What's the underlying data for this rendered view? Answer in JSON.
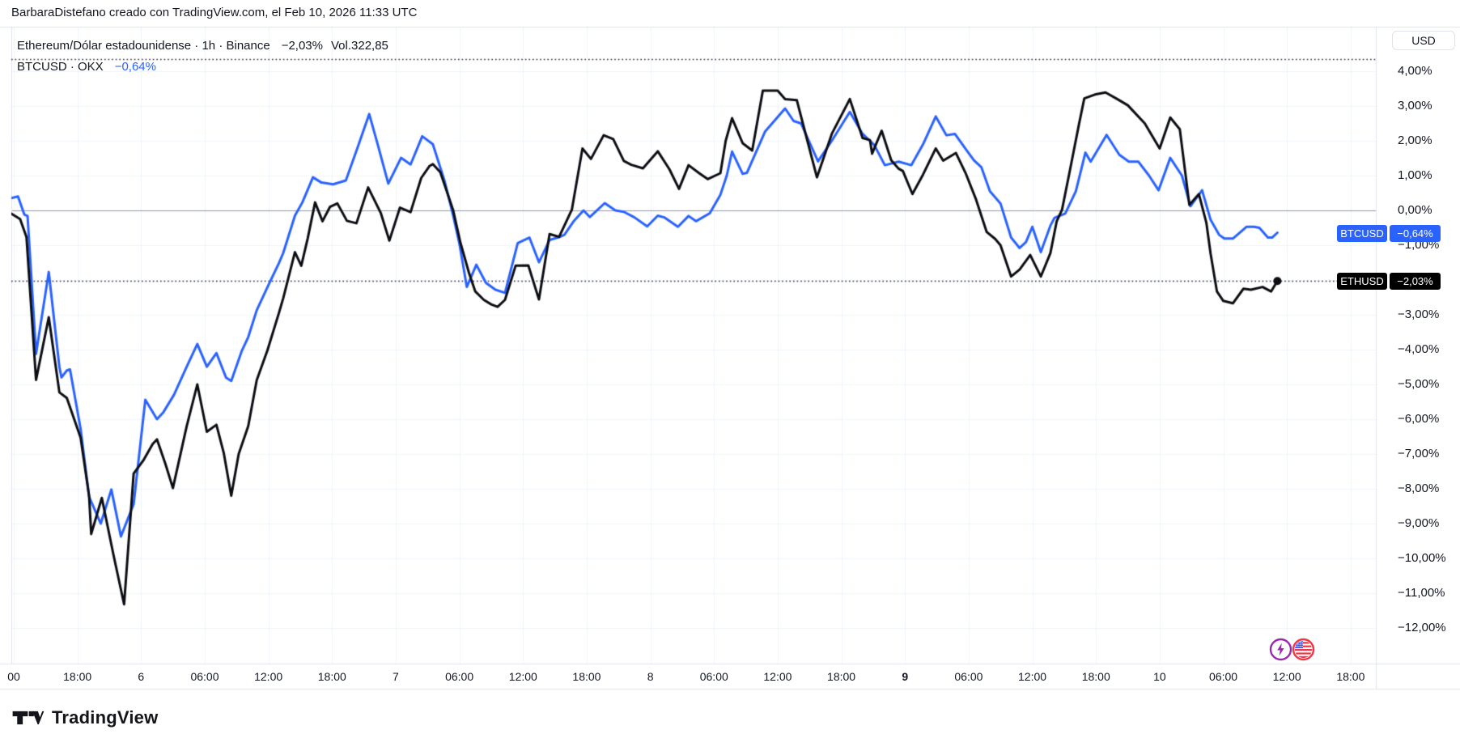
{
  "attribution": "BarbaraDistefano creado con TradingView.com, el Feb 10, 2026 11:33 UTC",
  "legend": {
    "row1_left": "Ethereum/Dólar estadounidense · 1h · Binance",
    "row1_change": "−2,03%",
    "row1_volume": "Vol.322,85",
    "row2_left": "BTCUSD · OKX",
    "row2_change": "−0,64%"
  },
  "price_axis": {
    "currency": "USD",
    "ticks": [
      {
        "v": 4,
        "label": "4,00%"
      },
      {
        "v": 3,
        "label": "3,00%"
      },
      {
        "v": 2,
        "label": "2,00%"
      },
      {
        "v": 1,
        "label": "1,00%"
      },
      {
        "v": 0,
        "label": "0,00%"
      },
      {
        "v": -1,
        "label": "−1,00%"
      },
      {
        "v": -2,
        "label": "−2,00%"
      },
      {
        "v": -3,
        "label": "−3,00%"
      },
      {
        "v": -4,
        "label": "−4,00%"
      },
      {
        "v": -5,
        "label": "−5,00%"
      },
      {
        "v": -6,
        "label": "−6,00%"
      },
      {
        "v": -7,
        "label": "−7,00%"
      },
      {
        "v": -8,
        "label": "−8,00%"
      },
      {
        "v": -9,
        "label": "−9,00%"
      },
      {
        "v": -10,
        "label": "−10,00%"
      },
      {
        "v": -11,
        "label": "−11,00%"
      },
      {
        "v": -12,
        "label": "−12,00%"
      }
    ]
  },
  "badges": [
    {
      "symbol": "BTCUSD",
      "value": "−0,64%",
      "pct": -0.64,
      "bg": "#2962FF"
    },
    {
      "symbol": "ETHUSD",
      "value": "−2,03%",
      "pct": -2.03,
      "bg": "#000000"
    }
  ],
  "time_axis": [
    {
      "label": "00",
      "slot": 0
    },
    {
      "label": "18:00",
      "slot": 1
    },
    {
      "label": "6",
      "slot": 2,
      "day": true
    },
    {
      "label": "06:00",
      "slot": 3
    },
    {
      "label": "12:00",
      "slot": 4
    },
    {
      "label": "18:00",
      "slot": 5
    },
    {
      "label": "7",
      "slot": 6,
      "day": true
    },
    {
      "label": "06:00",
      "slot": 7
    },
    {
      "label": "12:00",
      "slot": 8
    },
    {
      "label": "18:00",
      "slot": 9
    },
    {
      "label": "8",
      "slot": 10,
      "day": true
    },
    {
      "label": "06:00",
      "slot": 11
    },
    {
      "label": "12:00",
      "slot": 12
    },
    {
      "label": "18:00",
      "slot": 13
    },
    {
      "label": "9",
      "slot": 14,
      "day": true,
      "bold": true
    },
    {
      "label": "06:00",
      "slot": 15
    },
    {
      "label": "12:00",
      "slot": 16
    },
    {
      "label": "18:00",
      "slot": 17
    },
    {
      "label": "10",
      "slot": 18,
      "day": true
    },
    {
      "label": "06:00",
      "slot": 19
    },
    {
      "label": "12:00",
      "slot": 20
    },
    {
      "label": "18:00",
      "slot": 21
    }
  ],
  "logo_text": "TradingView",
  "chart_data": {
    "type": "line",
    "title": "Ethereum/Dólar estadounidense · 1h · Binance vs BTCUSD · OKX (cambio porcentual)",
    "ylabel": "%",
    "ylim": [
      -12.6,
      4.8
    ],
    "grid": true,
    "zero_line": 0,
    "x_unit": "hours since 2026-02-05 11:00 UTC (1h bars, ticks every 6h)",
    "dotted_levels": [
      {
        "pct": 4.35
      },
      {
        "pct": -2.03,
        "dot_end": true
      }
    ],
    "series": [
      {
        "name": "BTCUSD",
        "color": "#2962FF",
        "last_label": "−0,64%",
        "points": [
          [
            0,
            0.3
          ],
          [
            1.4,
            0.4
          ],
          [
            2,
            -0.12
          ],
          [
            2.3,
            -0.16
          ],
          [
            3.1,
            -4.12
          ],
          [
            4.3,
            -1.77
          ],
          [
            5.3,
            -4.5
          ],
          [
            5.5,
            -4.8
          ],
          [
            6,
            -4.6
          ],
          [
            6.3,
            -4.57
          ],
          [
            7.3,
            -6.28
          ],
          [
            8.1,
            -8.23
          ],
          [
            9.2,
            -9
          ],
          [
            10.2,
            -8.02
          ],
          [
            11.1,
            -9.37
          ],
          [
            12.3,
            -8.44
          ],
          [
            13.4,
            -5.44
          ],
          [
            14.5,
            -6
          ],
          [
            15.1,
            -5.8
          ],
          [
            16.1,
            -5.3
          ],
          [
            17.3,
            -4.49
          ],
          [
            18.3,
            -3.84
          ],
          [
            19.2,
            -4.49
          ],
          [
            20.1,
            -4.1
          ],
          [
            21,
            -4.8
          ],
          [
            21.5,
            -4.9
          ],
          [
            22.5,
            -4.03
          ],
          [
            23.1,
            -3.64
          ],
          [
            23.9,
            -2.87
          ],
          [
            24.9,
            -2.21
          ],
          [
            26,
            -1.51
          ],
          [
            26.4,
            -1.22
          ],
          [
            27.5,
            -0.15
          ],
          [
            28.2,
            0.23
          ],
          [
            29.2,
            0.95
          ],
          [
            30,
            0.8
          ],
          [
            31.1,
            0.75
          ],
          [
            32.3,
            0.86
          ],
          [
            33.4,
            1.8
          ],
          [
            34.5,
            2.77
          ],
          [
            35.3,
            1.9
          ],
          [
            36.3,
            0.77
          ],
          [
            37.5,
            1.51
          ],
          [
            38.4,
            1.32
          ],
          [
            39.5,
            2.13
          ],
          [
            40.5,
            1.9
          ],
          [
            41.6,
            0.85
          ],
          [
            42.4,
            -0.13
          ],
          [
            43,
            -0.95
          ],
          [
            43.7,
            -2.2
          ],
          [
            44.6,
            -1.56
          ],
          [
            45.5,
            -2.08
          ],
          [
            46.4,
            -2.28
          ],
          [
            47.3,
            -2.37
          ],
          [
            48.5,
            -0.94
          ],
          [
            49.6,
            -0.78
          ],
          [
            50.5,
            -1.49
          ],
          [
            51.5,
            -0.85
          ],
          [
            52.4,
            -0.77
          ],
          [
            52.9,
            -0.7
          ],
          [
            53.8,
            -0.3
          ],
          [
            54.7,
            0
          ],
          [
            55.3,
            -0.19
          ],
          [
            56.7,
            0.21
          ],
          [
            57.7,
            0
          ],
          [
            58.5,
            -0.04
          ],
          [
            59.5,
            -0.2
          ],
          [
            60.7,
            -0.46
          ],
          [
            61.7,
            -0.15
          ],
          [
            62.3,
            -0.2
          ],
          [
            63.6,
            -0.47
          ],
          [
            64.6,
            -0.16
          ],
          [
            65.3,
            -0.31
          ],
          [
            66.6,
            -0.08
          ],
          [
            67.6,
            0.45
          ],
          [
            68.2,
            1
          ],
          [
            68.7,
            1.69
          ],
          [
            69.7,
            1.05
          ],
          [
            70.1,
            1.08
          ],
          [
            71.8,
            2.26
          ],
          [
            73.7,
            2.93
          ],
          [
            74.5,
            2.57
          ],
          [
            75.2,
            2.5
          ],
          [
            76.8,
            1.41
          ],
          [
            78.1,
            2
          ],
          [
            79.8,
            2.83
          ],
          [
            81,
            2.2
          ],
          [
            82.1,
            1.88
          ],
          [
            83.1,
            1.3
          ],
          [
            84.4,
            1.4
          ],
          [
            85.6,
            1.3
          ],
          [
            86.7,
            1.9
          ],
          [
            87.9,
            2.7
          ],
          [
            88.9,
            2.16
          ],
          [
            89.7,
            2.2
          ],
          [
            90.8,
            1.73
          ],
          [
            91.5,
            1.44
          ],
          [
            92.2,
            1.24
          ],
          [
            93,
            0.55
          ],
          [
            94,
            0.2
          ],
          [
            95,
            -0.78
          ],
          [
            95.8,
            -1.08
          ],
          [
            96.4,
            -0.91
          ],
          [
            97,
            -0.47
          ],
          [
            97.8,
            -1.2
          ],
          [
            98.7,
            -0.44
          ],
          [
            99.1,
            -0.21
          ],
          [
            100.1,
            -0.09
          ],
          [
            101.1,
            0.55
          ],
          [
            102,
            1.66
          ],
          [
            102.5,
            1.4
          ],
          [
            104,
            2.17
          ],
          [
            105.2,
            1.6
          ],
          [
            106.1,
            1.4
          ],
          [
            107,
            1.4
          ],
          [
            108,
            1
          ],
          [
            108.9,
            0.58
          ],
          [
            110,
            1.51
          ],
          [
            111.1,
            1
          ],
          [
            111.9,
            0.12
          ],
          [
            113,
            0.58
          ],
          [
            113.8,
            -0.27
          ],
          [
            114.6,
            -0.7
          ],
          [
            115.1,
            -0.81
          ],
          [
            115.9,
            -0.81
          ],
          [
            117.2,
            -0.47
          ],
          [
            117.9,
            -0.47
          ],
          [
            118.4,
            -0.5
          ],
          [
            119.2,
            -0.78
          ],
          [
            119.6,
            -0.78
          ],
          [
            120.1,
            -0.64
          ]
        ]
      },
      {
        "name": "ETHUSD",
        "color": "#0b0d12",
        "last_label": "−2,03%",
        "points": [
          [
            0,
            0.05
          ],
          [
            1.6,
            -0.25
          ],
          [
            2.2,
            -0.77
          ],
          [
            3.1,
            -4.87
          ],
          [
            4.3,
            -3.07
          ],
          [
            5.3,
            -5.23
          ],
          [
            6,
            -5.39
          ],
          [
            7.3,
            -6.53
          ],
          [
            8.1,
            -8.2
          ],
          [
            8.3,
            -9.3
          ],
          [
            9.3,
            -8.26
          ],
          [
            10.4,
            -9.9
          ],
          [
            11.4,
            -11.32
          ],
          [
            12.3,
            -7.56
          ],
          [
            13.2,
            -7.19
          ],
          [
            14.1,
            -6.71
          ],
          [
            14.5,
            -6.58
          ],
          [
            15.3,
            -7.29
          ],
          [
            16,
            -7.98
          ],
          [
            17.3,
            -6.2
          ],
          [
            18.3,
            -5
          ],
          [
            19.2,
            -6.36
          ],
          [
            20.1,
            -6.16
          ],
          [
            20.8,
            -6.98
          ],
          [
            21.5,
            -8.2
          ],
          [
            22.2,
            -7
          ],
          [
            23.1,
            -6.2
          ],
          [
            23.9,
            -4.88
          ],
          [
            24.9,
            -4.03
          ],
          [
            26,
            -2.94
          ],
          [
            26.4,
            -2.52
          ],
          [
            27.5,
            -1.2
          ],
          [
            28.1,
            -1.59
          ],
          [
            28.7,
            -0.81
          ],
          [
            29.4,
            0.23
          ],
          [
            30.1,
            -0.31
          ],
          [
            30.8,
            0.1
          ],
          [
            31.5,
            0.2
          ],
          [
            32.4,
            -0.3
          ],
          [
            33.3,
            -0.37
          ],
          [
            34.4,
            0.66
          ],
          [
            35.6,
            -0.08
          ],
          [
            36.4,
            -0.87
          ],
          [
            37.4,
            0.08
          ],
          [
            38.4,
            -0.05
          ],
          [
            39.4,
            0.93
          ],
          [
            40.2,
            1.28
          ],
          [
            40.5,
            1.33
          ],
          [
            41.2,
            1.1
          ],
          [
            42.4,
            0.02
          ],
          [
            43.1,
            -0.93
          ],
          [
            43.9,
            -1.79
          ],
          [
            44.5,
            -2.33
          ],
          [
            45.3,
            -2.57
          ],
          [
            46,
            -2.7
          ],
          [
            46.6,
            -2.77
          ],
          [
            47.3,
            -2.57
          ],
          [
            48.3,
            -1.59
          ],
          [
            49.5,
            -1.58
          ],
          [
            50.5,
            -2.56
          ],
          [
            51.5,
            -0.68
          ],
          [
            52.4,
            -0.76
          ],
          [
            53.6,
            0.02
          ],
          [
            54.6,
            1.78
          ],
          [
            55.4,
            1.48
          ],
          [
            56.6,
            2.16
          ],
          [
            57.5,
            2.05
          ],
          [
            58.5,
            1.42
          ],
          [
            59.2,
            1.31
          ],
          [
            60.3,
            1.21
          ],
          [
            61.7,
            1.7
          ],
          [
            62.8,
            1.18
          ],
          [
            63.7,
            0.62
          ],
          [
            64.6,
            1.3
          ],
          [
            65.6,
            1.07
          ],
          [
            66.4,
            0.9
          ],
          [
            67.6,
            1.07
          ],
          [
            68.1,
            2
          ],
          [
            68.7,
            2.65
          ],
          [
            69.7,
            1.93
          ],
          [
            70.6,
            1.72
          ],
          [
            71.6,
            3.44
          ],
          [
            73,
            3.44
          ],
          [
            73.7,
            3.2
          ],
          [
            74.8,
            3.17
          ],
          [
            75.8,
            2
          ],
          [
            76.7,
            0.95
          ],
          [
            78.1,
            2.2
          ],
          [
            79.8,
            3.2
          ],
          [
            81,
            2.08
          ],
          [
            81.7,
            2.02
          ],
          [
            81.9,
            1.63
          ],
          [
            82.8,
            2.29
          ],
          [
            83.7,
            1.44
          ],
          [
            84.4,
            1.2
          ],
          [
            84.8,
            1.13
          ],
          [
            85.7,
            0.47
          ],
          [
            86.7,
            1.03
          ],
          [
            87.9,
            1.78
          ],
          [
            88.6,
            1.43
          ],
          [
            89.8,
            1.65
          ],
          [
            90.7,
            1.08
          ],
          [
            91.7,
            0.31
          ],
          [
            92.7,
            -0.62
          ],
          [
            93.5,
            -0.82
          ],
          [
            94,
            -1
          ],
          [
            95,
            -1.9
          ],
          [
            95.8,
            -1.7
          ],
          [
            96.8,
            -1.28
          ],
          [
            97.8,
            -1.9
          ],
          [
            98.7,
            -1.23
          ],
          [
            99.3,
            -0.31
          ],
          [
            99.8,
            0.02
          ],
          [
            100.6,
            1.24
          ],
          [
            101.4,
            2.48
          ],
          [
            101.9,
            3.22
          ],
          [
            102.9,
            3.33
          ],
          [
            103.9,
            3.39
          ],
          [
            105,
            3.2
          ],
          [
            106,
            3.02
          ],
          [
            107.6,
            2.5
          ],
          [
            109,
            1.78
          ],
          [
            110,
            2.67
          ],
          [
            110.9,
            2.33
          ],
          [
            111.8,
            0.16
          ],
          [
            112.7,
            0.47
          ],
          [
            113.4,
            -0.35
          ],
          [
            113.8,
            -1.24
          ],
          [
            114.4,
            -2.33
          ],
          [
            115,
            -2.6
          ],
          [
            115.9,
            -2.67
          ],
          [
            116.9,
            -2.25
          ],
          [
            117.6,
            -2.28
          ],
          [
            118.7,
            -2.2
          ],
          [
            119.5,
            -2.33
          ],
          [
            120.1,
            -2.03
          ]
        ]
      }
    ]
  }
}
